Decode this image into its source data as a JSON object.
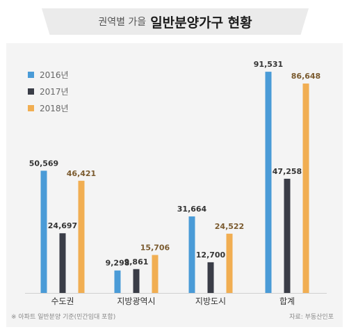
{
  "title": {
    "sub": "권역별 가을",
    "main": "일반분양가구 현황"
  },
  "chart_data": {
    "type": "bar",
    "categories": [
      "수도권",
      "지방광역시",
      "지방도시",
      "합계"
    ],
    "series": [
      {
        "name": "2016년",
        "color": "#4a9bd7",
        "values": [
          50569,
          9298,
          31664,
          91531
        ]
      },
      {
        "name": "2017년",
        "color": "#3a3d47",
        "values": [
          24697,
          9861,
          12700,
          47258
        ]
      },
      {
        "name": "2018년",
        "color": "#f1ae52",
        "values": [
          46421,
          15706,
          24522,
          86648
        ]
      }
    ],
    "value_labels": [
      [
        "50,569",
        "9,298",
        "31,664",
        "91,531"
      ],
      [
        "24,697",
        "9,861",
        "12,700",
        "47,258"
      ],
      [
        "46,421",
        "15,706",
        "24,522",
        "86,648"
      ]
    ],
    "ylim": [
      0,
      100000
    ],
    "legend_position": "top-left",
    "grid": false
  },
  "footnote": "※ 아파트 일반분양 기준(민간임대 포함)",
  "source": "자료: 부동산인포"
}
